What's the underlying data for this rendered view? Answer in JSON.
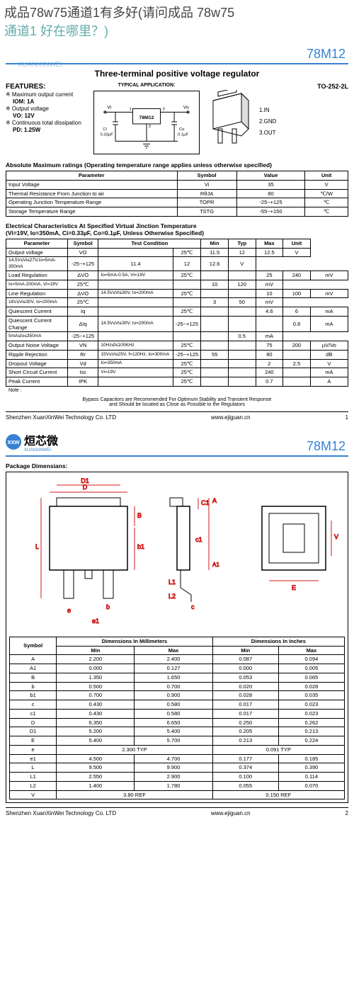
{
  "question": {
    "l1": "成品78w75通道1有多好(请问成品 78w75",
    "l2": "通道1 好在哪里？)"
  },
  "watermark": "XUANXINWEI",
  "part": "78M12",
  "main_title": "Three-terminal positive voltage regulator",
  "features": {
    "h": "FEATURES:",
    "r": [
      {
        "a": "※ Maximum output current",
        "b": "IOM: 1A"
      },
      {
        "a": "※ Output voltage",
        "b": "VO: 12V"
      },
      {
        "a": "※ Continuous total dissipation",
        "b": "PD: 1.25W"
      }
    ]
  },
  "typical": {
    "h": "TYPICAL  APPLICATION:",
    "chip": "78M12",
    "vi": "Vi",
    "vo": "Vo",
    "ci": "Ci\n0.33µF",
    "co": "Co\n0.1µF",
    "p1": "1",
    "p2": "2",
    "p3": "3"
  },
  "pkg": {
    "h": "TO-252-2L",
    "pins": [
      "1.IN",
      "2.GND",
      "3.OUT"
    ]
  },
  "abs": {
    "h": "Absolute Maximum ratings  (Operating temperature range applies unless otherwise specified)",
    "cols": [
      "Parameter",
      "Symbol",
      "Value",
      "Unit"
    ],
    "rows": [
      [
        "Input  Voltage",
        "Vi",
        "35",
        "V"
      ],
      [
        "Thermal Resistance From Junction to air",
        "RθJA",
        "80",
        "℃/W"
      ],
      [
        "Operating Junction Temperature Range",
        "TOPR",
        "-25~+125",
        "℃"
      ],
      [
        "Storage Temperature Range",
        "TSTG",
        "-55~+150",
        "℃"
      ]
    ]
  },
  "elec": {
    "h": "Electrical  Characteristics At Specified Virtual Jinction Temperature\n(Vi=19V, Io=350mA, Ci=0.33µF, Co=0.1µF, Unless Otherwise Specified)",
    "cols": [
      "Parameter",
      "Symbol",
      "Test Condition",
      "",
      "Min",
      "Typ",
      "Max",
      "Unit"
    ],
    "rows": [
      {
        "p": "Output voltage",
        "s": "VO",
        "tc": [
          [
            "",
            "25℃",
            "11.5",
            "12",
            "12.5",
            "V"
          ],
          [
            "14.5V≤Vi≤27V,Io=5mA-350mA",
            "-25~+125",
            "11.4",
            "12",
            "12.6",
            "V"
          ]
        ],
        "rs": 2
      },
      {
        "p": "Load  Regulation",
        "s": "ΔVO",
        "tc": [
          [
            "Io=5mA-0.5A, Vi=19V",
            "25℃",
            "",
            "",
            "25",
            "240",
            "mV"
          ],
          [
            "Io=5mA-200mA, Vi=19V",
            "25℃",
            "",
            "",
            "10",
            "120",
            "mV"
          ]
        ],
        "rs": 2
      },
      {
        "p": "Line  Regulation",
        "s": "ΔVO",
        "tc": [
          [
            "14.5V≤Vi≤30V, Io=200mA",
            "25℃",
            "",
            "",
            "10",
            "100",
            "mV"
          ],
          [
            "16V≤Vi≤30V, Io=200mA",
            "25℃",
            "",
            "",
            "3",
            "50",
            "mV"
          ]
        ],
        "rs": 2
      },
      {
        "p": "Quiescent  Current",
        "s": "Iq",
        "tc": [
          [
            "",
            "25℃",
            "",
            "",
            "4.6",
            "6",
            "mA"
          ]
        ],
        "rs": 1
      },
      {
        "p": "Quiescent  Current Change",
        "s": "ΔIq",
        "tc": [
          [
            "14.5V≤Vi≤30V, Io=200mA",
            "-25~+125",
            "",
            "",
            "",
            "0.8",
            "mA"
          ],
          [
            "5mA≤Io≤350mA",
            "-25~+125",
            "",
            "",
            "",
            "0.5",
            "mA"
          ]
        ],
        "rs": 2
      },
      {
        "p": "Output  Noise  Voltage",
        "s": "VN",
        "tc": [
          [
            "10Hz≤f≤100KHz",
            "25℃",
            "",
            "",
            "75",
            "200",
            "µV/Vo"
          ]
        ],
        "rs": 1
      },
      {
        "p": "Ripple Rejection",
        "s": "Rr",
        "tc": [
          [
            "15V≤Vi≤25V, f=120Hz, Io=300mA",
            "-25~+125",
            "55",
            "",
            "80",
            "",
            "dB"
          ]
        ],
        "rs": 1
      },
      {
        "p": "Dropout  Voltage",
        "s": "Vd",
        "tc": [
          [
            "Io=350mA",
            "25℃",
            "",
            "",
            "2",
            "2.5",
            "V"
          ]
        ],
        "rs": 1
      },
      {
        "p": "Short  Circuit  Current",
        "s": "Isc",
        "tc": [
          [
            "Vi=19V",
            "25℃",
            "",
            "",
            "240",
            "",
            "mA"
          ]
        ],
        "rs": 1
      },
      {
        "p": "Peak  Current",
        "s": "IPK",
        "tc": [
          [
            "",
            "25℃",
            "",
            "",
            "0.7",
            "",
            "A"
          ]
        ],
        "rs": 1
      }
    ]
  },
  "note": {
    "h": "Note :",
    "t1": "Bypass Capacitors are Recommended For Optimum Stability and Transient Response",
    "t2": "and Should be located as Close as Possible to the Regulators"
  },
  "footer": {
    "co": "Shenzhen XuanXinWei Technology Co. LTD",
    "url": "www.ejiguan.cn",
    "p1": "1",
    "p2": "2"
  },
  "logo2": {
    "icon": "xxw",
    "name": "烜芯微",
    "sub": "XUANXINWEI"
  },
  "pkgdim": {
    "h": "Package Dimensians:",
    "labels": [
      "D",
      "D1",
      "C1",
      "A",
      "A1",
      "B",
      "b",
      "b1",
      "L",
      "L1",
      "L2",
      "V",
      "e",
      "e1",
      "c",
      "c1",
      "E"
    ],
    "thead": [
      "Symbol",
      "Dimensions In Millimeters",
      "Dimensions In Inches"
    ],
    "sub": [
      "Min",
      "Max",
      "Min",
      "Max"
    ],
    "rows": [
      [
        "A",
        "2.200",
        "2.400",
        "0.087",
        "0.094"
      ],
      [
        "A1",
        "0.000",
        "0.127",
        "0.000",
        "0.005"
      ],
      [
        "B",
        "1.350",
        "1.650",
        "0.053",
        "0.065"
      ],
      [
        "b",
        "0.500",
        "0.700",
        "0.020",
        "0.028"
      ],
      [
        "b1",
        "0.700",
        "0.900",
        "0.028",
        "0.035"
      ],
      [
        "c",
        "0.430",
        "0.580",
        "0.017",
        "0.023"
      ],
      [
        "c1",
        "0.430",
        "0.580",
        "0.017",
        "0.023"
      ],
      [
        "D",
        "6.350",
        "6.650",
        "0.250",
        "0.262"
      ],
      [
        "D1",
        "5.200",
        "5.400",
        "0.205",
        "0.213"
      ],
      [
        "E",
        "5.400",
        "5.700",
        "0.213",
        "0.224"
      ],
      [
        "e",
        {
          "span": "2.300 TYP"
        },
        {
          "span": "0.091 TYP"
        }
      ],
      [
        "e1",
        "4.500",
        "4.700",
        "0.177",
        "0.185"
      ],
      [
        "L",
        "9.500",
        "9.900",
        "0.374",
        "0.390"
      ],
      [
        "L1",
        "2.550",
        "2.900",
        "0.100",
        "0.114"
      ],
      [
        "L2",
        "1.400",
        "1.780",
        "0.055",
        "0.070"
      ],
      [
        "V",
        {
          "span": "3.80 REF"
        },
        {
          "span": "0.150 REF"
        }
      ]
    ]
  },
  "colors": {
    "accent": "#3682d2",
    "dim": "#d01818"
  }
}
